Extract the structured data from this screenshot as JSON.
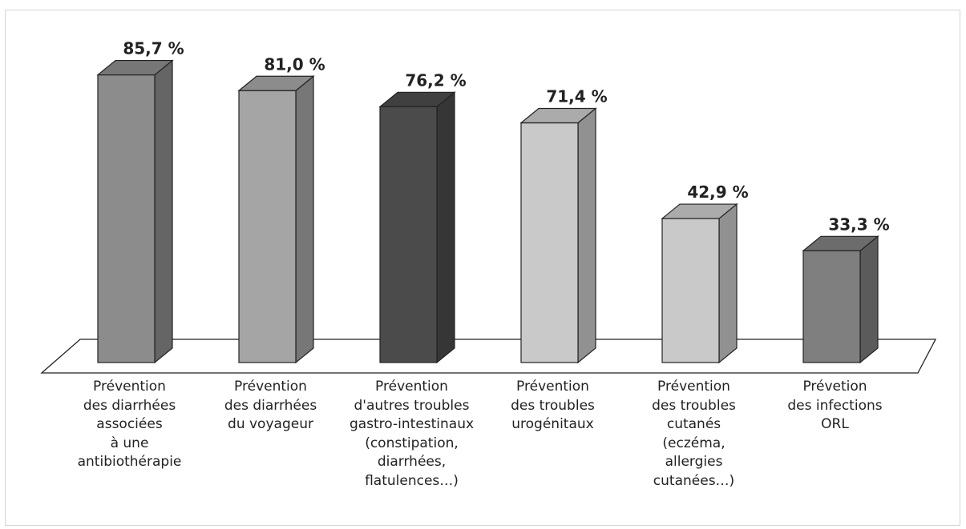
{
  "chart_data": {
    "type": "bar",
    "title": "",
    "xlabel": "",
    "ylabel": "",
    "ylim": [
      0,
      100
    ],
    "grid": false,
    "legend": "none",
    "style": "3d",
    "categories": [
      [
        "Prévention",
        "des diarrhées",
        "associées",
        "à une",
        "antibiothérapie"
      ],
      [
        "Prévention",
        "des diarrhées",
        "du voyageur"
      ],
      [
        "Prévention",
        "d'autres troubles",
        "gastro-intestinaux",
        "(constipation,",
        "diarrhées,",
        "flatulences…)"
      ],
      [
        "Prévention",
        "des troubles",
        "urogénitaux"
      ],
      [
        "Prévention",
        "des troubles",
        "cutanés",
        "(eczéma,",
        "allergies",
        "cutanées…)"
      ],
      [
        "Prévetion",
        "des infections",
        "ORL"
      ]
    ],
    "values": [
      85.7,
      81.0,
      76.2,
      71.4,
      42.9,
      33.3
    ],
    "value_labels": [
      "85,7 %",
      "81,0 %",
      "76,2 %",
      "71,4 %",
      "42,9 %",
      "33,3 %"
    ],
    "colors": [
      "#8c8c8c",
      "#a5a5a5",
      "#4b4b4b",
      "#c9c9c9",
      "#c9c9c9",
      "#7f7f7f"
    ]
  }
}
